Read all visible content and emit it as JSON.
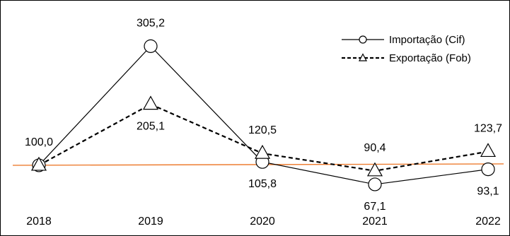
{
  "chart_data": {
    "type": "line",
    "x": [
      "2018",
      "2019",
      "2020",
      "2021",
      "2022"
    ],
    "ylim": [
      50,
      330
    ],
    "legend_position": "top-right",
    "baseline": {
      "value": 100,
      "color": "#ED7D31"
    },
    "series": [
      {
        "name": "Importação (Cif)",
        "values": [
          100.0,
          305.2,
          105.8,
          67.1,
          93.1
        ],
        "labels": [
          "100,0",
          "305,2",
          "105,8",
          "67,1",
          "93,1"
        ],
        "label_placement": [
          "above",
          "above",
          "below",
          "below",
          "below"
        ],
        "marker": "circle",
        "line_style": "solid",
        "color": "#000000"
      },
      {
        "name": "Exportação (Fob)",
        "values": [
          100.0,
          205.1,
          120.5,
          90.4,
          123.7
        ],
        "labels": [
          "",
          "205,1",
          "120,5",
          "90,4",
          "123,7"
        ],
        "label_placement": [
          "none",
          "below",
          "above",
          "above",
          "above"
        ],
        "marker": "triangle",
        "line_style": "dashed",
        "color": "#000000"
      }
    ]
  }
}
